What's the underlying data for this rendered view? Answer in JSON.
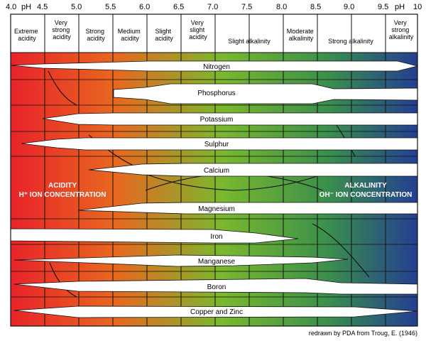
{
  "ph_scale": {
    "unit_label": "pH",
    "ticks": [
      "4.0",
      "4.5",
      "5.0",
      "5.5",
      "6.0",
      "6.5",
      "7.0",
      "7.5",
      "8.0",
      "8.5",
      "9.0",
      "9.5",
      "10"
    ]
  },
  "categories": [
    {
      "lines": [
        "Extreme",
        "acidity"
      ]
    },
    {
      "lines": [
        "Very",
        "strong",
        "acidity"
      ]
    },
    {
      "lines": [
        "Strong",
        "acidity"
      ]
    },
    {
      "lines": [
        "Medium",
        "acidity"
      ]
    },
    {
      "lines": [
        "Slight",
        "acidity"
      ]
    },
    {
      "lines": [
        "Very",
        "slight",
        "acidity"
      ]
    },
    {
      "lines": [
        "Slight alkalinity"
      ]
    },
    {
      "lines": [
        "Moderate",
        "alkalinity"
      ]
    },
    {
      "lines": [
        "Strong alkalinity"
      ]
    },
    {
      "lines": [
        "Very",
        "strong",
        "alkalinity"
      ]
    }
  ],
  "nutrients": [
    "Nitrogen",
    "Phosphorus",
    "Potassium",
    "Sulphur",
    "Calcium",
    "Magnesium",
    "Iron",
    "Manganese",
    "Boron",
    "Copper and Zinc"
  ],
  "labels": {
    "acidity_title": "ACIDITY",
    "acidity_sub": "H⁺ ION CONCENTRATION",
    "alkalinity_title": "ALKALINITY",
    "alkalinity_sub": "OH⁻ ION CONCENTRATION"
  },
  "credit": "redrawn by PDA from Troug, E. (1946)",
  "colors": {
    "acid": "#e8232a",
    "orange": "#e8681f",
    "neutral": "#7ab82e",
    "alkaline_green": "#3a8f4c",
    "alkaline_blue": "#233e93"
  }
}
